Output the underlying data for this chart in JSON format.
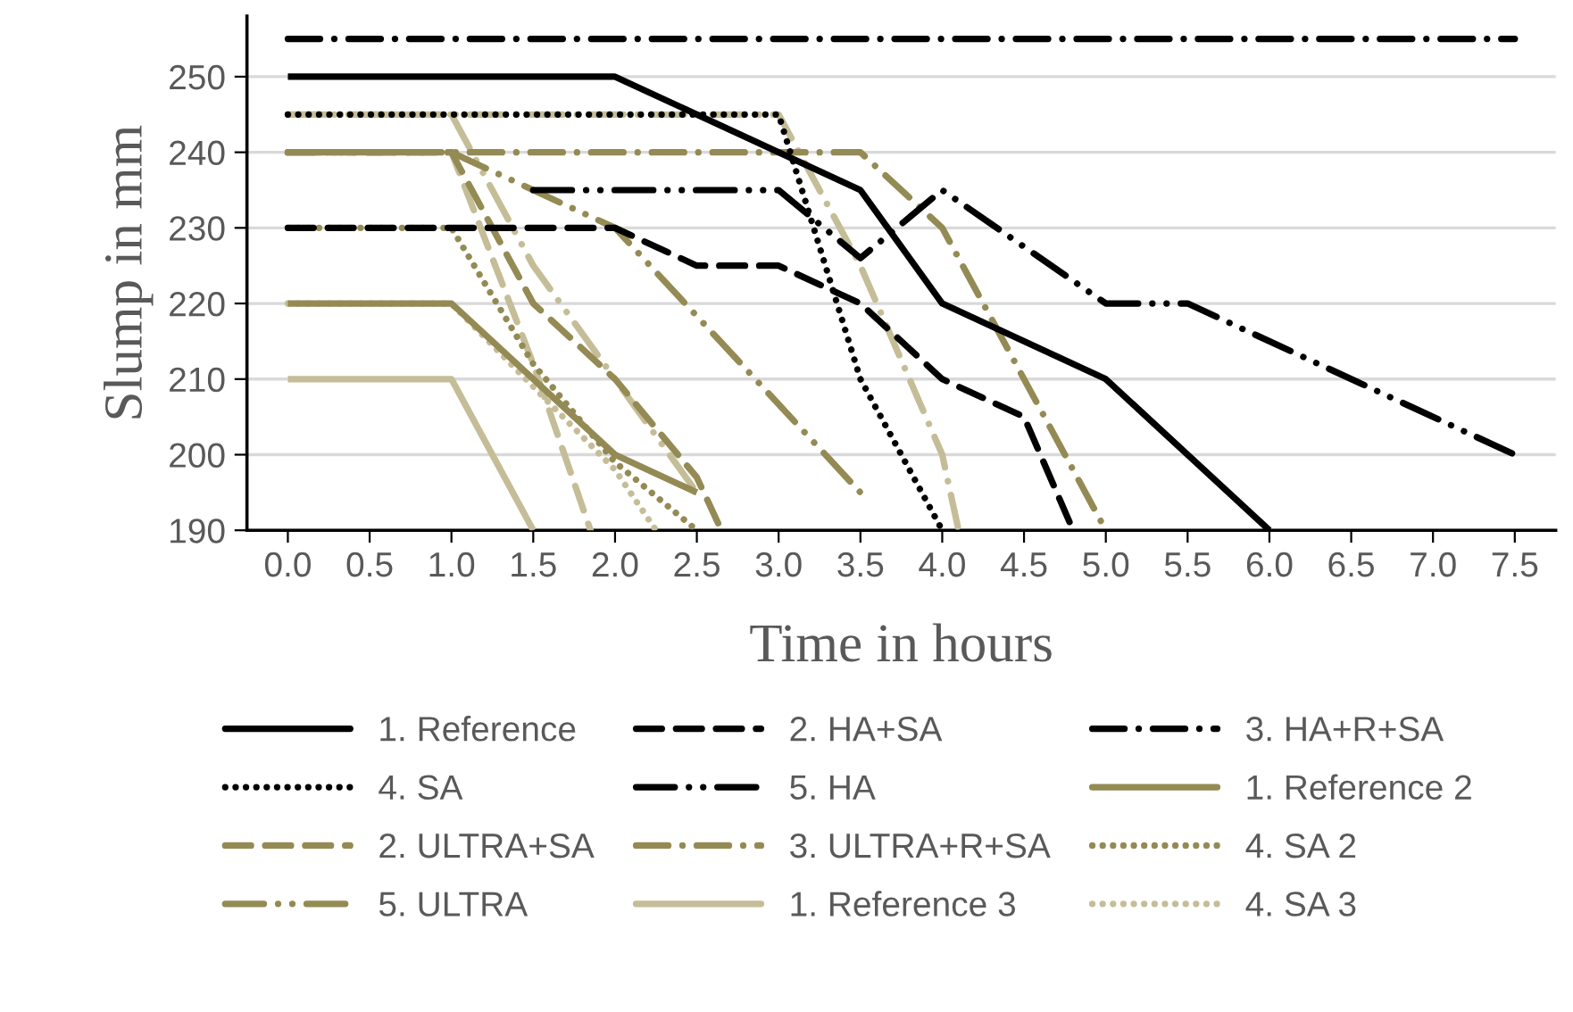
{
  "chart_data": {
    "type": "line",
    "xlabel": "Time in hours",
    "ylabel": "Slump in mm",
    "xlim": [
      -0.25,
      7.75
    ],
    "xticks": [
      {
        "value": 0,
        "label": "0.0"
      },
      {
        "value": 0.5,
        "label": "0.5"
      },
      {
        "value": 1,
        "label": "1.0"
      },
      {
        "value": 1.5,
        "label": "1.5"
      },
      {
        "value": 2,
        "label": "2.0"
      },
      {
        "value": 2.5,
        "label": "2.5"
      },
      {
        "value": 3,
        "label": "3.0"
      },
      {
        "value": 3.5,
        "label": "3.5"
      },
      {
        "value": 4,
        "label": "4.0"
      },
      {
        "value": 4.5,
        "label": "4.5"
      },
      {
        "value": 5,
        "label": "5.0"
      },
      {
        "value": 5.5,
        "label": "5.5"
      },
      {
        "value": 6,
        "label": "6.0"
      },
      {
        "value": 6.5,
        "label": "6.5"
      },
      {
        "value": 7,
        "label": "7.0"
      },
      {
        "value": 7.5,
        "label": "7.5"
      }
    ],
    "ylim": [
      190,
      258
    ],
    "yticks": [
      190,
      200,
      210,
      220,
      230,
      240,
      250
    ],
    "grid": "y",
    "legend": "bottom",
    "marker": "none",
    "series": [
      {
        "name": "1. Reference",
        "color": "#000000",
        "line_style": "solid",
        "x": [
          0,
          2,
          3.5,
          4,
          5,
          6
        ],
        "values": [
          250,
          250,
          235,
          220,
          210,
          190
        ]
      },
      {
        "name": "2. HA+SA",
        "color": "#000000",
        "line_style": "dashed",
        "x": [
          0,
          2,
          2.5,
          3,
          3.5,
          4,
          4.5,
          4.8
        ],
        "values": [
          230,
          230,
          225,
          225,
          220,
          210,
          205,
          190
        ]
      },
      {
        "name": "3. HA+R+SA",
        "color": "#000000",
        "line_style": "dashdot",
        "x": [
          0,
          7.5
        ],
        "values": [
          255,
          255
        ]
      },
      {
        "name": "4. SA",
        "color": "#000000",
        "line_style": "dotted",
        "x": [
          0,
          3,
          3.5,
          4
        ],
        "values": [
          245,
          245,
          210,
          190
        ]
      },
      {
        "name": "5. HA",
        "color": "#000000",
        "line_style": "dashdotdot",
        "x": [
          1.5,
          3,
          3.5,
          4,
          5,
          5.5,
          7.5
        ],
        "values": [
          235,
          235,
          226,
          235,
          220,
          220,
          200
        ]
      },
      {
        "name": "1. Reference 2",
        "color": "#948a54",
        "line_style": "solid",
        "x": [
          0,
          1,
          2,
          2.5
        ],
        "values": [
          220,
          220,
          200,
          195
        ]
      },
      {
        "name": "2. ULTRA+SA",
        "color": "#948a54",
        "line_style": "dashed",
        "x": [
          0,
          1,
          1.5,
          2,
          2.5,
          2.65
        ],
        "values": [
          240,
          240,
          220,
          210,
          197,
          190
        ]
      },
      {
        "name": "3. ULTRA+R+SA",
        "color": "#948a54",
        "line_style": "dashdot",
        "x": [
          0,
          3.5,
          4,
          5
        ],
        "values": [
          240,
          240,
          230,
          190
        ]
      },
      {
        "name": "4. SA 2",
        "color": "#948a54",
        "line_style": "dotted",
        "x": [
          0,
          1,
          1.5,
          2,
          2.5
        ],
        "values": [
          230,
          230,
          212,
          199,
          190
        ]
      },
      {
        "name": "5. ULTRA",
        "color": "#948a54",
        "line_style": "dashdotdot",
        "x": [
          0,
          1,
          1.5,
          2,
          3.5
        ],
        "values": [
          240,
          240,
          235,
          230,
          195
        ]
      },
      {
        "name": "1. Reference 3",
        "color": "#c4bd97",
        "line_style": "solid",
        "x": [
          0,
          1,
          1.5
        ],
        "values": [
          210,
          210,
          190
        ]
      },
      {
        "color": "#c4bd97",
        "line_style": "dashed",
        "x": [
          0,
          1,
          1.5,
          1.85
        ],
        "values": [
          240,
          240,
          212,
          190
        ]
      },
      {
        "color": "#c4bd97",
        "line_style": "dashdot",
        "x": [
          0,
          3,
          3.5,
          4,
          4.1
        ],
        "values": [
          245,
          245,
          225,
          200,
          190
        ]
      },
      {
        "name": "4. SA 3",
        "color": "#c4bd97",
        "line_style": "dotted",
        "x": [
          0,
          1,
          2,
          2.25
        ],
        "values": [
          220,
          220,
          198,
          190
        ]
      },
      {
        "color": "#c4bd97",
        "line_style": "dashdotdot",
        "x": [
          0,
          1,
          1.5,
          2,
          2.5
        ],
        "values": [
          245,
          245,
          225,
          210,
          195
        ]
      }
    ]
  }
}
